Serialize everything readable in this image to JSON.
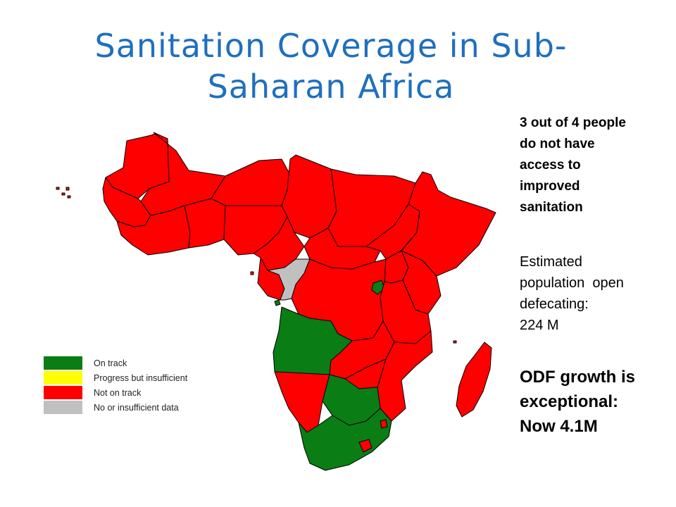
{
  "title": {
    "line1": "Sanitation Coverage in Sub-",
    "line2": "Saharan Africa"
  },
  "legend": {
    "items": [
      {
        "label": "On track",
        "color": "#0a7d14"
      },
      {
        "label": "Progress but insufficient",
        "color": "#ffff00"
      },
      {
        "label": "Not on track",
        "color": "#ff0000"
      },
      {
        "label": "No or insufficient data",
        "color": "#c0c0c0"
      }
    ]
  },
  "stats": {
    "access": [
      "3 out of 4 people",
      "do not have",
      "access to",
      "improved",
      "sanitation"
    ],
    "open_defecation": [
      "Estimated",
      "population  open",
      "defecating:",
      "224 M"
    ],
    "odf": [
      "ODF growth is",
      "exceptional:",
      "Now 4.1M"
    ]
  },
  "map": {
    "colors": {
      "not_on_track": "#ff0000",
      "on_track": "#0a7d14",
      "no_data": "#c0c0c0",
      "border": "#000000"
    }
  }
}
